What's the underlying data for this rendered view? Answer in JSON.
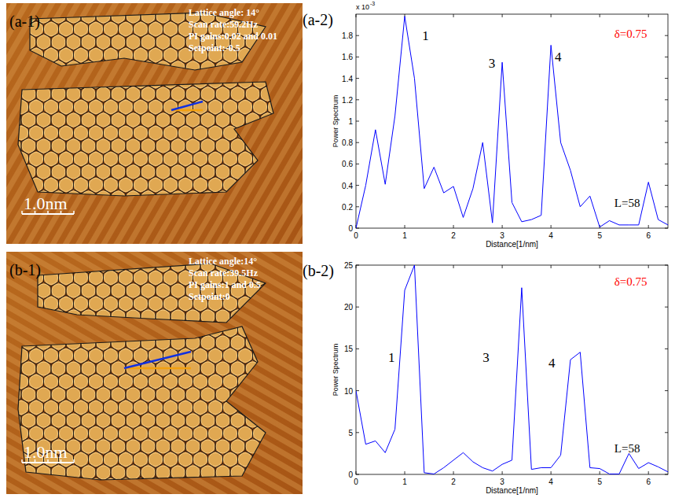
{
  "chart_data": [
    {
      "type": "line",
      "label": "(a-2)",
      "x_label": "Distance[1/nm]",
      "y_label": "Power Spectrum",
      "y_multiplier": {
        "base": "x 10",
        "exponent": "-3"
      },
      "x": [
        0,
        0.2,
        0.4,
        0.6,
        0.8,
        1.0,
        1.2,
        1.4,
        1.6,
        1.8,
        2.0,
        2.2,
        2.4,
        2.6,
        2.8,
        3.0,
        3.2,
        3.4,
        3.6,
        3.8,
        4.0,
        4.2,
        4.4,
        4.6,
        4.8,
        5.0,
        5.2,
        5.4,
        5.6,
        5.8,
        6.0,
        6.2,
        6.4
      ],
      "values": [
        0,
        0.4,
        0.92,
        0.41,
        1.05,
        1.98,
        1.4,
        0.37,
        0.57,
        0.33,
        0.39,
        0.1,
        0.37,
        0.8,
        0.05,
        1.55,
        0.24,
        0.06,
        0.08,
        0.12,
        1.71,
        0.8,
        0.54,
        0.2,
        0.3,
        0.01,
        0.07,
        0.03,
        0.03,
        0.03,
        0.43,
        0.08,
        0.03
      ],
      "color": "#0000ff",
      "xlim": [
        0,
        6.4
      ],
      "xticks": [
        0,
        1,
        2,
        3,
        4,
        5,
        6
      ],
      "ylim": [
        0,
        2.0
      ],
      "yticks": [
        0,
        0.2,
        0.4,
        0.6,
        0.8,
        1,
        1.2,
        1.4,
        1.6,
        1.8
      ],
      "annotations": [
        {
          "text": "1",
          "x": 1.36,
          "y": 1.76,
          "color": "#000000"
        },
        {
          "text": "3",
          "x": 2.72,
          "y": 1.5,
          "color": "#000000"
        },
        {
          "text": "4",
          "x": 4.08,
          "y": 1.56,
          "color": "#000000"
        },
        {
          "text": "δ=0.75",
          "x": 5.3,
          "y": 1.78,
          "color": "#ff0000"
        },
        {
          "text": "L=58",
          "x": 5.3,
          "y": 0.2,
          "color": "#000000"
        }
      ]
    },
    {
      "type": "line",
      "label": "(b-2)",
      "x_label": "Distance[1/nm]",
      "y_label": "Power Spectrum",
      "x": [
        0,
        0.2,
        0.4,
        0.6,
        0.8,
        1.0,
        1.2,
        1.4,
        1.6,
        1.8,
        2.0,
        2.2,
        2.4,
        2.6,
        2.8,
        3.0,
        3.2,
        3.4,
        3.6,
        3.8,
        4.0,
        4.2,
        4.4,
        4.6,
        4.8,
        5.0,
        5.2,
        5.4,
        5.6,
        5.8,
        6.0,
        6.2,
        6.4
      ],
      "values": [
        10,
        3.6,
        4,
        2.6,
        5.4,
        22,
        25,
        0.2,
        0.05,
        0.8,
        1.7,
        2.6,
        1.5,
        0.8,
        0.4,
        1.2,
        1.7,
        22.3,
        0.6,
        0.8,
        0.8,
        2.3,
        13.7,
        14.6,
        0.8,
        0.7,
        0.05,
        0.05,
        2.5,
        0.7,
        1.4,
        0.9,
        0.3
      ],
      "color": "#0000ff",
      "xlim": [
        0,
        6.4
      ],
      "xticks": [
        0,
        1,
        2,
        3,
        4,
        5,
        6
      ],
      "ylim": [
        0,
        25
      ],
      "yticks": [
        0,
        5,
        10,
        15,
        20,
        25
      ],
      "annotations": [
        {
          "text": "1",
          "x": 0.66,
          "y": 13.4,
          "color": "#000000"
        },
        {
          "text": "3",
          "x": 2.6,
          "y": 13.4,
          "color": "#000000"
        },
        {
          "text": "4",
          "x": 3.95,
          "y": 12.8,
          "color": "#000000"
        },
        {
          "text": "δ=0.75",
          "x": 5.3,
          "y": 22.6,
          "color": "#ff0000"
        },
        {
          "text": "L=58",
          "x": 5.3,
          "y": 2.6,
          "color": "#000000"
        }
      ]
    }
  ],
  "images": [
    {
      "label": "(a-1)",
      "texts": [
        "Lattice angle: 14°",
        "Scan rate:59.2Hz",
        "PI gains:0.02 and 0.01",
        "Setpoint:-0.5"
      ],
      "scale_bar": "1.0nm"
    },
    {
      "label": "(b-1)",
      "texts": [
        "Lattice angle:14°",
        "Scan rate:39.5Hz",
        "PI gains:1 and 0.5",
        "Setpoint:0"
      ],
      "scale_bar": "1.0nm"
    }
  ]
}
